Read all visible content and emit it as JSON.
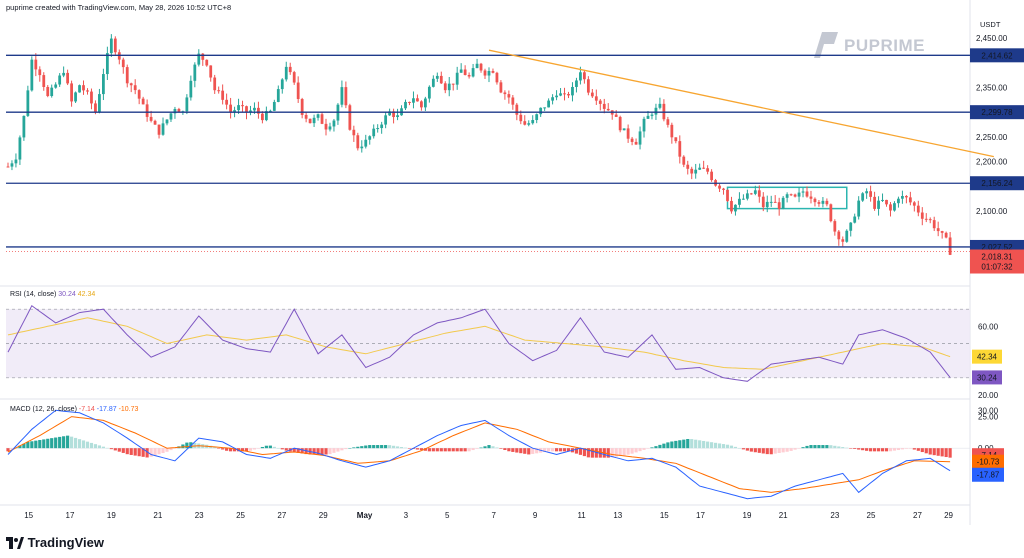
{
  "header": {
    "text": "puprime created with TradingView.com, May 28, 2026 10:52 UTC+8"
  },
  "currency_label": "USDT",
  "brand": {
    "logo_text": "PUPRIME",
    "footer_text": "TradingView"
  },
  "colors": {
    "up": "#26a69a",
    "down": "#ef5350",
    "level": "#1e3a8a",
    "trend": "#f7a530",
    "rsi": "#7e57c2",
    "rsi_ma": "#f2c94c",
    "macd": "#2962ff",
    "signal": "#ff6d00"
  },
  "chart_data": {
    "type": "candlestick",
    "timeframe": "4h",
    "x_tick_labels": [
      "15",
      "17",
      "19",
      "21",
      "23",
      "25",
      "27",
      "29",
      "May",
      "3",
      "5",
      "7",
      "9",
      "11",
      "13",
      "15",
      "17",
      "19",
      "21",
      "23",
      "25",
      "27",
      "29"
    ],
    "y_tick_labels": [
      "2,450.00",
      "2,350.00",
      "2,250.00",
      "2,200.00",
      "2,100.00"
    ],
    "ylim": [
      1985,
      2490
    ],
    "close_path": [
      [
        0,
        2190
      ],
      [
        2,
        2210
      ],
      [
        4,
        2290
      ],
      [
        6,
        2405
      ],
      [
        8,
        2380
      ],
      [
        10,
        2330
      ],
      [
        12,
        2355
      ],
      [
        14,
        2385
      ],
      [
        16,
        2320
      ],
      [
        18,
        2355
      ],
      [
        20,
        2335
      ],
      [
        22,
        2300
      ],
      [
        24,
        2380
      ],
      [
        26,
        2445
      ],
      [
        28,
        2410
      ],
      [
        30,
        2365
      ],
      [
        32,
        2345
      ],
      [
        34,
        2310
      ],
      [
        36,
        2280
      ],
      [
        38,
        2260
      ],
      [
        40,
        2285
      ],
      [
        42,
        2310
      ],
      [
        44,
        2300
      ],
      [
        46,
        2370
      ],
      [
        48,
        2415
      ],
      [
        50,
        2400
      ],
      [
        52,
        2345
      ],
      [
        54,
        2330
      ],
      [
        56,
        2300
      ],
      [
        58,
        2310
      ],
      [
        60,
        2300
      ],
      [
        62,
        2305
      ],
      [
        64,
        2290
      ],
      [
        66,
        2300
      ],
      [
        68,
        2340
      ],
      [
        70,
        2395
      ],
      [
        72,
        2355
      ],
      [
        74,
        2300
      ],
      [
        76,
        2280
      ],
      [
        78,
        2290
      ],
      [
        80,
        2270
      ],
      [
        82,
        2285
      ],
      [
        84,
        2345
      ],
      [
        86,
        2270
      ],
      [
        88,
        2230
      ],
      [
        90,
        2240
      ],
      [
        92,
        2260
      ],
      [
        94,
        2280
      ],
      [
        96,
        2300
      ],
      [
        98,
        2290
      ],
      [
        100,
        2315
      ],
      [
        102,
        2330
      ],
      [
        104,
        2310
      ],
      [
        106,
        2350
      ],
      [
        108,
        2380
      ],
      [
        110,
        2350
      ],
      [
        112,
        2360
      ],
      [
        114,
        2385
      ],
      [
        116,
        2370
      ],
      [
        118,
        2395
      ],
      [
        120,
        2380
      ],
      [
        122,
        2385
      ],
      [
        124,
        2345
      ],
      [
        126,
        2330
      ],
      [
        128,
        2295
      ],
      [
        130,
        2275
      ],
      [
        132,
        2280
      ],
      [
        134,
        2305
      ],
      [
        136,
        2320
      ],
      [
        138,
        2340
      ],
      [
        140,
        2330
      ],
      [
        142,
        2345
      ],
      [
        144,
        2385
      ],
      [
        146,
        2345
      ],
      [
        148,
        2330
      ],
      [
        150,
        2310
      ],
      [
        152,
        2300
      ],
      [
        154,
        2270
      ],
      [
        156,
        2250
      ],
      [
        158,
        2240
      ],
      [
        160,
        2280
      ],
      [
        162,
        2300
      ],
      [
        164,
        2310
      ],
      [
        166,
        2270
      ],
      [
        168,
        2235
      ],
      [
        170,
        2190
      ],
      [
        172,
        2175
      ],
      [
        174,
        2185
      ],
      [
        176,
        2180
      ],
      [
        178,
        2155
      ],
      [
        180,
        2145
      ],
      [
        182,
        2105
      ],
      [
        184,
        2120
      ],
      [
        186,
        2130
      ],
      [
        188,
        2140
      ],
      [
        190,
        2110
      ],
      [
        192,
        2120
      ],
      [
        194,
        2110
      ],
      [
        196,
        2130
      ],
      [
        198,
        2125
      ],
      [
        200,
        2140
      ],
      [
        202,
        2130
      ],
      [
        204,
        2120
      ],
      [
        206,
        2110
      ],
      [
        208,
        2060
      ],
      [
        210,
        2040
      ],
      [
        212,
        2070
      ],
      [
        214,
        2120
      ],
      [
        216,
        2140
      ],
      [
        218,
        2110
      ],
      [
        220,
        2120
      ],
      [
        222,
        2100
      ],
      [
        224,
        2130
      ],
      [
        226,
        2125
      ],
      [
        228,
        2110
      ],
      [
        230,
        2090
      ],
      [
        232,
        2080
      ],
      [
        234,
        2060
      ],
      [
        236,
        2040
      ],
      [
        237,
        2018.31
      ]
    ],
    "levels": [
      "2,414.62",
      "2,299.78",
      "2,156.24",
      "2,027.52"
    ],
    "level_values": [
      2414.62,
      2299.78,
      2156.24,
      2027.52
    ],
    "current_price": "2,018.31",
    "current_price_value": 2018.31,
    "countdown": "01:07:32",
    "trendline": {
      "start": [
        121,
        2425
      ],
      "end": [
        248,
        2210
      ]
    },
    "consolidation_box": {
      "x0": 181,
      "x1": 211,
      "y0": 2105,
      "y1": 2148
    },
    "rsi": {
      "title": "RSI (14, close)",
      "value": "30.24",
      "ma_value": "42.34",
      "value_num": 30.24,
      "ma_num": 42.34,
      "ylim": [
        20,
        80
      ],
      "upper": 70,
      "lower": 30,
      "mid": 50,
      "tick_labels": [
        "60.00",
        "20.00"
      ],
      "rsi_path": [
        [
          0,
          45
        ],
        [
          6,
          72
        ],
        [
          12,
          62
        ],
        [
          18,
          68
        ],
        [
          24,
          70
        ],
        [
          30,
          55
        ],
        [
          36,
          42
        ],
        [
          42,
          48
        ],
        [
          48,
          66
        ],
        [
          54,
          52
        ],
        [
          60,
          47
        ],
        [
          66,
          45
        ],
        [
          72,
          70
        ],
        [
          78,
          44
        ],
        [
          84,
          55
        ],
        [
          90,
          36
        ],
        [
          96,
          42
        ],
        [
          102,
          55
        ],
        [
          108,
          62
        ],
        [
          114,
          65
        ],
        [
          120,
          70
        ],
        [
          126,
          50
        ],
        [
          132,
          40
        ],
        [
          138,
          46
        ],
        [
          144,
          65
        ],
        [
          150,
          45
        ],
        [
          156,
          42
        ],
        [
          162,
          55
        ],
        [
          168,
          35
        ],
        [
          174,
          36
        ],
        [
          180,
          30
        ],
        [
          186,
          28
        ],
        [
          192,
          38
        ],
        [
          198,
          40
        ],
        [
          204,
          42
        ],
        [
          210,
          38
        ],
        [
          214,
          55
        ],
        [
          220,
          58
        ],
        [
          226,
          53
        ],
        [
          232,
          45
        ],
        [
          237,
          30.24
        ]
      ],
      "ma_path": [
        [
          0,
          55
        ],
        [
          10,
          60
        ],
        [
          20,
          65
        ],
        [
          30,
          60
        ],
        [
          40,
          50
        ],
        [
          50,
          55
        ],
        [
          60,
          52
        ],
        [
          70,
          55
        ],
        [
          80,
          48
        ],
        [
          90,
          44
        ],
        [
          100,
          50
        ],
        [
          110,
          56
        ],
        [
          120,
          60
        ],
        [
          130,
          52
        ],
        [
          140,
          50
        ],
        [
          150,
          48
        ],
        [
          160,
          45
        ],
        [
          170,
          40
        ],
        [
          180,
          36
        ],
        [
          190,
          35
        ],
        [
          200,
          40
        ],
        [
          210,
          45
        ],
        [
          220,
          50
        ],
        [
          230,
          48
        ],
        [
          237,
          42.34
        ]
      ]
    },
    "macd": {
      "title": "MACD (12, 26, close)",
      "macd_value": "-17.87",
      "signal_value": "-10.73",
      "hist_value": "-7.14",
      "macd_num": -17.87,
      "signal_num": -10.73,
      "hist_num": -7.14,
      "ylim": [
        -45,
        35
      ],
      "tick_labels": [
        "30.00",
        "25.00",
        "0.00"
      ],
      "macd_path": [
        [
          0,
          -5
        ],
        [
          6,
          15
        ],
        [
          12,
          30
        ],
        [
          18,
          28
        ],
        [
          24,
          20
        ],
        [
          30,
          8
        ],
        [
          36,
          -5
        ],
        [
          42,
          -10
        ],
        [
          48,
          8
        ],
        [
          54,
          5
        ],
        [
          60,
          -5
        ],
        [
          66,
          -8
        ],
        [
          72,
          0
        ],
        [
          78,
          -4
        ],
        [
          84,
          -10
        ],
        [
          90,
          -15
        ],
        [
          96,
          -10
        ],
        [
          102,
          0
        ],
        [
          108,
          10
        ],
        [
          114,
          18
        ],
        [
          120,
          22
        ],
        [
          126,
          10
        ],
        [
          132,
          0
        ],
        [
          138,
          -5
        ],
        [
          144,
          0
        ],
        [
          150,
          -5
        ],
        [
          156,
          -10
        ],
        [
          162,
          -8
        ],
        [
          168,
          -15
        ],
        [
          174,
          -30
        ],
        [
          180,
          -35
        ],
        [
          186,
          -40
        ],
        [
          192,
          -38
        ],
        [
          198,
          -30
        ],
        [
          204,
          -25
        ],
        [
          210,
          -20
        ],
        [
          214,
          -35
        ],
        [
          220,
          -20
        ],
        [
          226,
          -10
        ],
        [
          232,
          -8
        ],
        [
          237,
          -17.87
        ]
      ],
      "signal_path": [
        [
          0,
          -3
        ],
        [
          8,
          10
        ],
        [
          16,
          25
        ],
        [
          24,
          22
        ],
        [
          32,
          12
        ],
        [
          40,
          0
        ],
        [
          48,
          2
        ],
        [
          56,
          0
        ],
        [
          64,
          -5
        ],
        [
          72,
          -3
        ],
        [
          80,
          -6
        ],
        [
          88,
          -12
        ],
        [
          96,
          -10
        ],
        [
          104,
          -2
        ],
        [
          112,
          10
        ],
        [
          120,
          20
        ],
        [
          128,
          15
        ],
        [
          136,
          5
        ],
        [
          144,
          0
        ],
        [
          152,
          -5
        ],
        [
          160,
          -8
        ],
        [
          168,
          -12
        ],
        [
          176,
          -22
        ],
        [
          184,
          -32
        ],
        [
          192,
          -35
        ],
        [
          200,
          -32
        ],
        [
          208,
          -28
        ],
        [
          214,
          -25
        ],
        [
          220,
          -18
        ],
        [
          228,
          -10
        ],
        [
          237,
          -10.73
        ]
      ],
      "hist": [
        -1,
        2,
        3,
        4,
        2,
        0,
        -2,
        -3,
        -1,
        2,
        1,
        -1,
        -1,
        1,
        -1,
        -2,
        -2,
        0,
        1,
        1,
        0,
        -1,
        -1,
        -1,
        1,
        -1,
        -2,
        -1,
        -1,
        -3,
        -3,
        -2,
        0,
        2,
        3,
        2,
        1,
        -1,
        -2,
        -1,
        1,
        1,
        0,
        -1,
        -1,
        0,
        -2,
        -3
      ]
    }
  }
}
